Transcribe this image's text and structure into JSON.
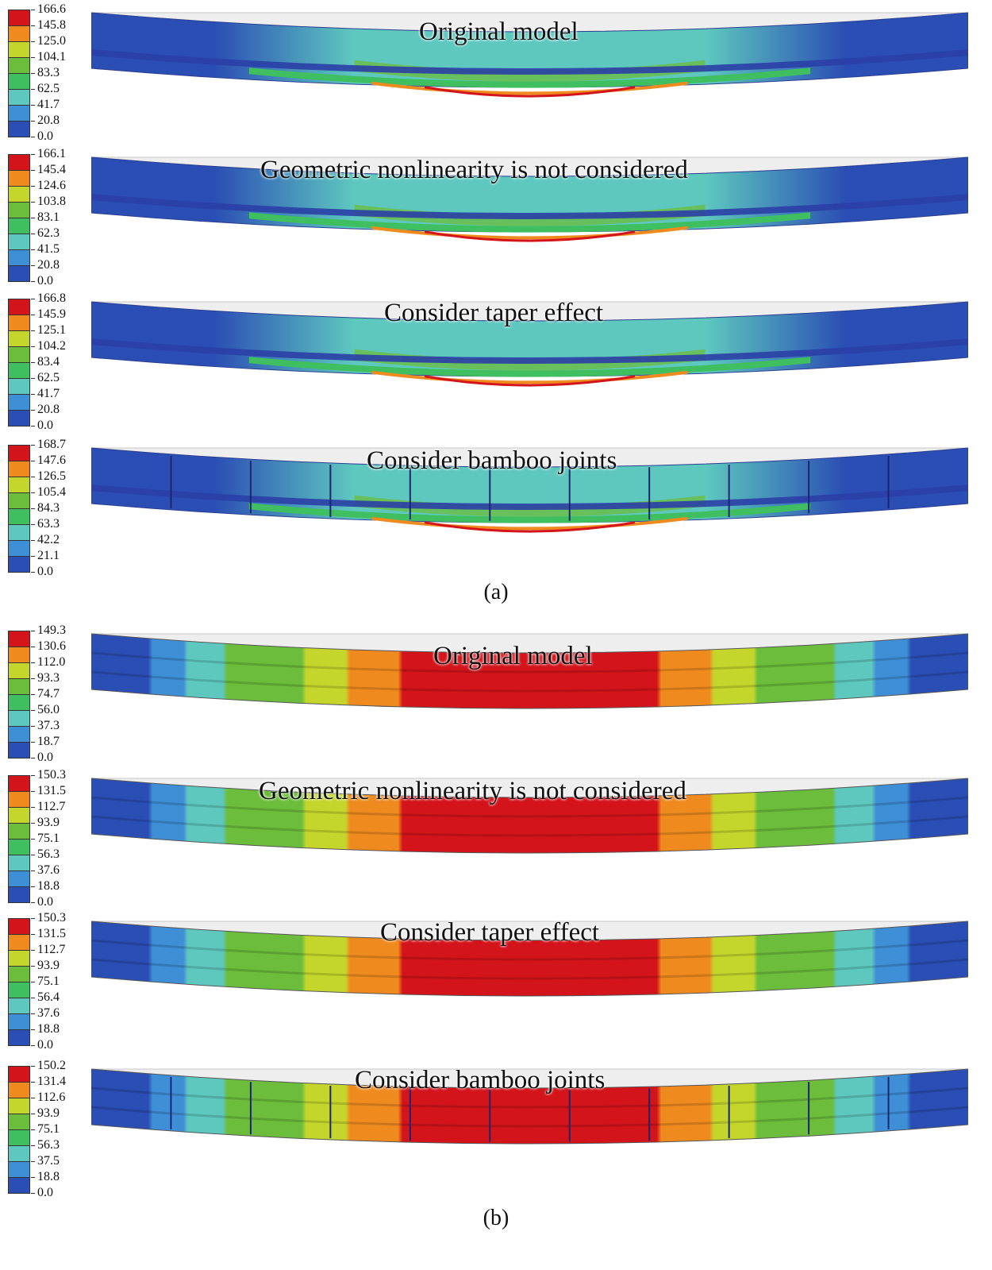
{
  "colors": {
    "legend_bands": [
      "#d4141b",
      "#ef8a1f",
      "#c4d62c",
      "#6cbd3b",
      "#3fbf5f",
      "#5ec8bf",
      "#3e8fd6",
      "#2b4eb4"
    ],
    "stress_a_low": "#2b4eb4",
    "stress_a_mid": "#5ec8bf",
    "stress_a_high": "#d4141b",
    "beam_frame": "#c8c8c8"
  },
  "part_a": {
    "caption": "(a)",
    "panels": [
      {
        "title": "Original model",
        "legend": [
          "166.6",
          "145.8",
          "125.0",
          "104.1",
          "83.3",
          "62.5",
          "41.7",
          "20.8",
          "0.0"
        ],
        "joints": false
      },
      {
        "title": "Geometric nonlinearity is not considered",
        "legend": [
          "166.1",
          "145.4",
          "124.6",
          "103.8",
          "83.1",
          "62.3",
          "41.5",
          "20.8",
          "0.0"
        ],
        "joints": false
      },
      {
        "title": "Consider taper effect",
        "legend": [
          "166.8",
          "145.9",
          "125.1",
          "104.2",
          "83.4",
          "62.5",
          "41.7",
          "20.8",
          "0.0"
        ],
        "joints": false
      },
      {
        "title": "Consider bamboo joints",
        "legend": [
          "168.7",
          "147.6",
          "126.5",
          "105.4",
          "84.3",
          "63.3",
          "42.2",
          "21.1",
          "0.0"
        ],
        "joints": true
      }
    ]
  },
  "part_b": {
    "caption": "(b)",
    "panels": [
      {
        "title": "Original model",
        "legend": [
          "149.3",
          "130.6",
          "112.0",
          "93.3",
          "74.7",
          "56.0",
          "37.3",
          "18.7",
          "0.0"
        ],
        "joints": false
      },
      {
        "title": "Geometric nonlinearity is not considered",
        "legend": [
          "150.3",
          "131.5",
          "112.7",
          "93.9",
          "75.1",
          "56.3",
          "37.6",
          "18.8",
          "0.0"
        ],
        "joints": false
      },
      {
        "title": "Consider taper effect",
        "legend": [
          "150.3",
          "131.5",
          "112.7",
          "93.9",
          "75.1",
          "56.4",
          "37.6",
          "18.8",
          "0.0"
        ],
        "joints": false
      },
      {
        "title": "Consider bamboo joints",
        "legend": [
          "150.2",
          "131.4",
          "112.6",
          "93.9",
          "75.1",
          "56.3",
          "37.5",
          "18.8",
          "0.0"
        ],
        "joints": true
      }
    ]
  }
}
